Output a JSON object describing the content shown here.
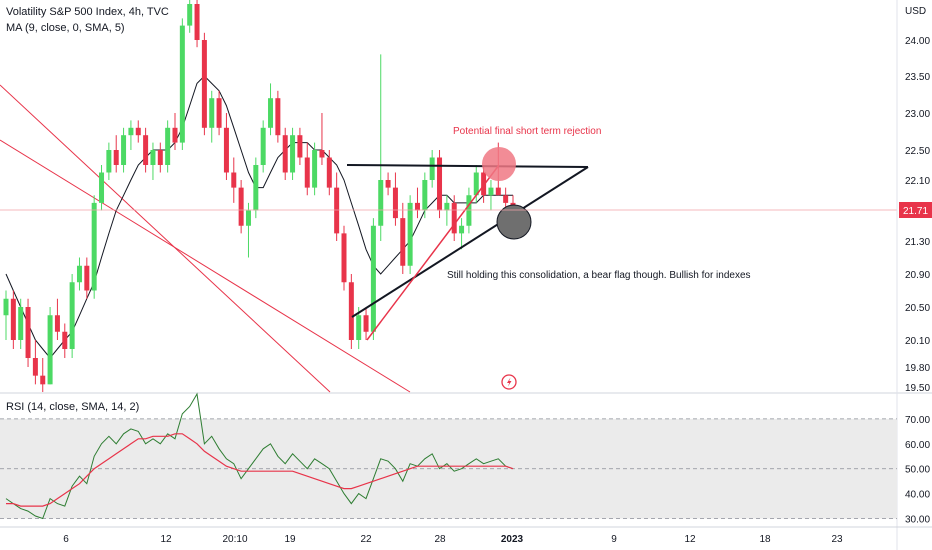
{
  "header": {
    "symbol_title": "Volatility S&P 500 Index, 4h, TVC",
    "ma_indicator": "MA (9, close, 0, SMA, 5)",
    "rsi_indicator": "RSI (14, close, SMA, 14, 2)"
  },
  "colors": {
    "up": "#26a69a",
    "up_candle": "#4cd964",
    "down": "#e8344a",
    "ma_line": "#131722",
    "rsi_line": "#2e7d32",
    "rsi_ma_line": "#e8344a",
    "trend_red": "#e8344a",
    "price_tag_bg": "#e8344a"
  },
  "chart_data": [
    {
      "type": "candlestick",
      "title": "Volatility S&P 500 Index, 4h, TVC",
      "currency_label": "USD",
      "y_ticks": [
        "24.00",
        "23.50",
        "23.00",
        "22.50",
        "22.10",
        "21.30",
        "20.90",
        "20.50",
        "20.10",
        "19.80",
        "19.50"
      ],
      "ylim": [
        19.5,
        24.5
      ],
      "x_ticks": [
        "6",
        "12",
        "20:10",
        "19",
        "22",
        "28",
        "2023",
        "9",
        "12",
        "18",
        "23"
      ],
      "last_price": "21.71",
      "ma_label": "MA (9, close, 0, SMA, 5)",
      "candles": [
        {
          "o": 20.4,
          "h": 20.7,
          "l": 20.1,
          "c": 20.6
        },
        {
          "o": 20.6,
          "h": 20.7,
          "l": 20.0,
          "c": 20.1
        },
        {
          "o": 20.1,
          "h": 20.6,
          "l": 20.0,
          "c": 20.5
        },
        {
          "o": 20.5,
          "h": 20.6,
          "l": 19.8,
          "c": 19.9
        },
        {
          "o": 19.9,
          "h": 20.1,
          "l": 19.6,
          "c": 19.7
        },
        {
          "o": 19.7,
          "h": 19.9,
          "l": 19.5,
          "c": 19.6
        },
        {
          "o": 19.6,
          "h": 20.5,
          "l": 19.6,
          "c": 20.4
        },
        {
          "o": 20.4,
          "h": 20.6,
          "l": 20.1,
          "c": 20.2
        },
        {
          "o": 20.2,
          "h": 20.3,
          "l": 19.9,
          "c": 20.0
        },
        {
          "o": 20.0,
          "h": 20.9,
          "l": 19.9,
          "c": 20.8
        },
        {
          "o": 20.8,
          "h": 21.1,
          "l": 20.7,
          "c": 21.0
        },
        {
          "o": 21.0,
          "h": 21.1,
          "l": 20.6,
          "c": 20.7
        },
        {
          "o": 20.7,
          "h": 21.9,
          "l": 20.6,
          "c": 21.8
        },
        {
          "o": 21.8,
          "h": 22.3,
          "l": 21.7,
          "c": 22.2
        },
        {
          "o": 22.2,
          "h": 22.6,
          "l": 22.1,
          "c": 22.5
        },
        {
          "o": 22.5,
          "h": 22.7,
          "l": 22.2,
          "c": 22.3
        },
        {
          "o": 22.3,
          "h": 22.8,
          "l": 22.2,
          "c": 22.7
        },
        {
          "o": 22.7,
          "h": 22.9,
          "l": 22.5,
          "c": 22.8
        },
        {
          "o": 22.8,
          "h": 22.9,
          "l": 22.6,
          "c": 22.7
        },
        {
          "o": 22.7,
          "h": 22.8,
          "l": 22.2,
          "c": 22.3
        },
        {
          "o": 22.3,
          "h": 22.6,
          "l": 22.1,
          "c": 22.5
        },
        {
          "o": 22.5,
          "h": 22.6,
          "l": 22.2,
          "c": 22.3
        },
        {
          "o": 22.3,
          "h": 22.9,
          "l": 22.2,
          "c": 22.8
        },
        {
          "o": 22.8,
          "h": 23.0,
          "l": 22.5,
          "c": 22.6
        },
        {
          "o": 22.6,
          "h": 24.3,
          "l": 22.5,
          "c": 24.2
        },
        {
          "o": 24.2,
          "h": 24.6,
          "l": 24.1,
          "c": 24.5
        },
        {
          "o": 24.5,
          "h": 24.6,
          "l": 23.9,
          "c": 24.0
        },
        {
          "o": 24.0,
          "h": 24.1,
          "l": 22.7,
          "c": 22.8
        },
        {
          "o": 22.8,
          "h": 23.3,
          "l": 22.6,
          "c": 23.2
        },
        {
          "o": 23.2,
          "h": 23.3,
          "l": 22.7,
          "c": 22.8
        },
        {
          "o": 22.8,
          "h": 23.0,
          "l": 22.1,
          "c": 22.2
        },
        {
          "o": 22.2,
          "h": 22.4,
          "l": 21.8,
          "c": 22.0
        },
        {
          "o": 22.0,
          "h": 22.1,
          "l": 21.4,
          "c": 21.5
        },
        {
          "o": 21.5,
          "h": 21.8,
          "l": 21.1,
          "c": 21.7
        },
        {
          "o": 21.7,
          "h": 22.4,
          "l": 21.6,
          "c": 22.3
        },
        {
          "o": 22.3,
          "h": 22.9,
          "l": 22.2,
          "c": 22.8
        },
        {
          "o": 22.8,
          "h": 23.4,
          "l": 22.7,
          "c": 23.2
        },
        {
          "o": 23.2,
          "h": 23.3,
          "l": 22.6,
          "c": 22.7
        },
        {
          "o": 22.7,
          "h": 22.8,
          "l": 22.1,
          "c": 22.2
        },
        {
          "o": 22.2,
          "h": 22.8,
          "l": 22.1,
          "c": 22.7
        },
        {
          "o": 22.7,
          "h": 22.8,
          "l": 22.3,
          "c": 22.4
        },
        {
          "o": 22.4,
          "h": 22.6,
          "l": 21.9,
          "c": 22.0
        },
        {
          "o": 22.0,
          "h": 22.6,
          "l": 21.9,
          "c": 22.5
        },
        {
          "o": 22.5,
          "h": 23.0,
          "l": 22.3,
          "c": 22.4
        },
        {
          "o": 22.4,
          "h": 22.5,
          "l": 21.9,
          "c": 22.0
        },
        {
          "o": 22.0,
          "h": 22.2,
          "l": 21.3,
          "c": 21.4
        },
        {
          "o": 21.4,
          "h": 21.5,
          "l": 20.7,
          "c": 20.8
        },
        {
          "o": 20.8,
          "h": 20.9,
          "l": 20.0,
          "c": 20.1
        },
        {
          "o": 20.1,
          "h": 20.5,
          "l": 20.0,
          "c": 20.4
        },
        {
          "o": 20.4,
          "h": 20.5,
          "l": 20.1,
          "c": 20.2
        },
        {
          "o": 20.2,
          "h": 21.6,
          "l": 20.1,
          "c": 21.5
        },
        {
          "o": 21.5,
          "h": 23.8,
          "l": 21.3,
          "c": 22.1
        },
        {
          "o": 22.1,
          "h": 22.2,
          "l": 21.9,
          "c": 22.0
        },
        {
          "o": 22.0,
          "h": 22.2,
          "l": 21.5,
          "c": 21.6
        },
        {
          "o": 21.6,
          "h": 21.8,
          "l": 20.9,
          "c": 21.0
        },
        {
          "o": 21.0,
          "h": 21.9,
          "l": 20.9,
          "c": 21.8
        },
        {
          "o": 21.8,
          "h": 22.0,
          "l": 21.6,
          "c": 21.7
        },
        {
          "o": 21.7,
          "h": 22.2,
          "l": 21.6,
          "c": 22.1
        },
        {
          "o": 22.1,
          "h": 22.5,
          "l": 22.0,
          "c": 22.4
        },
        {
          "o": 22.4,
          "h": 22.5,
          "l": 21.6,
          "c": 21.7
        },
        {
          "o": 21.7,
          "h": 21.9,
          "l": 21.5,
          "c": 21.8
        },
        {
          "o": 21.8,
          "h": 21.9,
          "l": 21.3,
          "c": 21.4
        },
        {
          "o": 21.4,
          "h": 21.6,
          "l": 21.2,
          "c": 21.5
        },
        {
          "o": 21.5,
          "h": 22.0,
          "l": 21.4,
          "c": 21.9
        },
        {
          "o": 21.9,
          "h": 22.3,
          "l": 21.8,
          "c": 22.2
        },
        {
          "o": 22.2,
          "h": 22.3,
          "l": 21.8,
          "c": 21.9
        },
        {
          "o": 21.9,
          "h": 22.1,
          "l": 21.7,
          "c": 22.0
        },
        {
          "o": 22.0,
          "h": 22.6,
          "l": 21.9,
          "c": 21.9
        },
        {
          "o": 21.9,
          "h": 22.0,
          "l": 21.7,
          "c": 21.8
        },
        {
          "o": 21.8,
          "h": 21.9,
          "l": 21.6,
          "c": 21.71
        }
      ],
      "ma_values": [
        20.9,
        20.7,
        20.5,
        20.3,
        20.1,
        20.0,
        19.9,
        20.0,
        20.1,
        20.2,
        20.4,
        20.6,
        20.8,
        21.1,
        21.4,
        21.7,
        21.9,
        22.1,
        22.3,
        22.4,
        22.5,
        22.5,
        22.5,
        22.6,
        22.8,
        23.1,
        23.4,
        23.5,
        23.4,
        23.3,
        23.1,
        22.8,
        22.5,
        22.2,
        22.0,
        22.0,
        22.2,
        22.4,
        22.5,
        22.6,
        22.6,
        22.6,
        22.5,
        22.5,
        22.4,
        22.3,
        22.1,
        21.8,
        21.5,
        21.2,
        21.0,
        20.9,
        21.0,
        21.1,
        21.2,
        21.3,
        21.5,
        21.7,
        21.8,
        21.9,
        21.9,
        21.8,
        21.8,
        21.8,
        21.8,
        21.9,
        21.9,
        21.9,
        21.9,
        21.9
      ],
      "annotations": [
        {
          "text": "Potential final short term rejection",
          "color": "#e8344a"
        },
        {
          "text": "Still holding this consolidation, a bear flag though. Bullish for indexes",
          "color": "#131722"
        }
      ]
    },
    {
      "type": "line",
      "title": "RSI (14, close, SMA, 14, 2)",
      "y_ticks": [
        "70.00",
        "60.00",
        "50.00",
        "40.00",
        "30.00"
      ],
      "ylim": [
        27,
        80
      ],
      "band": [
        30,
        70
      ],
      "rsi": [
        38,
        36,
        34,
        33,
        31,
        30,
        38,
        36,
        35,
        43,
        47,
        44,
        55,
        60,
        63,
        60,
        64,
        66,
        65,
        60,
        62,
        60,
        64,
        62,
        72,
        75,
        80,
        60,
        63,
        58,
        54,
        52,
        46,
        50,
        54,
        58,
        60,
        55,
        52,
        56,
        53,
        50,
        54,
        52,
        50,
        45,
        40,
        36,
        40,
        38,
        46,
        54,
        53,
        50,
        45,
        52,
        51,
        54,
        56,
        50,
        52,
        49,
        50,
        52,
        54,
        52,
        53,
        54,
        51,
        50
      ],
      "rsi_ma": [
        36,
        36,
        35,
        35,
        35,
        35,
        36,
        38,
        40,
        42,
        44,
        47,
        50,
        52,
        54,
        56,
        58,
        60,
        62,
        62,
        63,
        63,
        63,
        64,
        64,
        62,
        60,
        57,
        55,
        53,
        51,
        50,
        49,
        49,
        49,
        49,
        49,
        49,
        49,
        49,
        48,
        47,
        46,
        45,
        44,
        43,
        42,
        42,
        43,
        44,
        45,
        46,
        47,
        48,
        49,
        50,
        51,
        51,
        51,
        51,
        51,
        51,
        51,
        51,
        51,
        51,
        51,
        51,
        51,
        50
      ]
    }
  ]
}
